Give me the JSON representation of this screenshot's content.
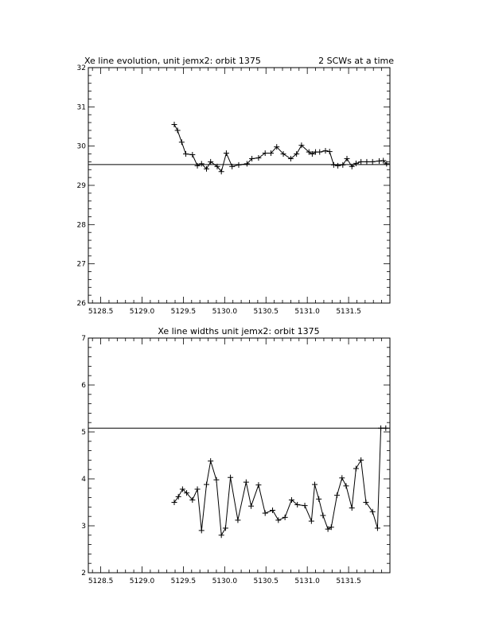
{
  "chart_data": [
    {
      "type": "line",
      "title": "Xe line evolution, unit jemx2: orbit 1375",
      "subtitle": "2 SCWs at a time",
      "xlim": [
        5128.35,
        5132.0
      ],
      "ylim": [
        26,
        32
      ],
      "xticks": [
        5128.5,
        5129.0,
        5129.5,
        5130.0,
        5130.5,
        5131.0,
        5131.5
      ],
      "xtick_labels": [
        "5128.5",
        "5129.0",
        "5129.5",
        "5130.0",
        "5130.5",
        "5131.0",
        "5131.5"
      ],
      "yticks": [
        26,
        27,
        28,
        29,
        30,
        31,
        32
      ],
      "ytick_labels": [
        "26",
        "27",
        "28",
        "29",
        "30",
        "31",
        "32"
      ],
      "reference_y": 29.53,
      "grid": false,
      "x": [
        5129.39,
        5129.43,
        5129.48,
        5129.53,
        5129.61,
        5129.67,
        5129.72,
        5129.78,
        5129.83,
        5129.91,
        5129.96,
        5130.02,
        5130.09,
        5130.17,
        5130.27,
        5130.33,
        5130.41,
        5130.49,
        5130.56,
        5130.63,
        5130.71,
        5130.8,
        5130.87,
        5130.93,
        5131.02,
        5131.06,
        5131.1,
        5131.15,
        5131.22,
        5131.27,
        5131.32,
        5131.37,
        5131.43,
        5131.48,
        5131.54,
        5131.59,
        5131.65,
        5131.72,
        5131.79,
        5131.87,
        5131.92,
        5131.96
      ],
      "y": [
        30.55,
        30.4,
        30.1,
        29.8,
        29.78,
        29.5,
        29.55,
        29.42,
        29.6,
        29.48,
        29.35,
        29.82,
        29.48,
        29.52,
        29.55,
        29.68,
        29.7,
        29.82,
        29.82,
        29.98,
        29.8,
        29.68,
        29.8,
        30.02,
        29.85,
        29.8,
        29.85,
        29.85,
        29.88,
        29.86,
        29.52,
        29.5,
        29.52,
        29.68,
        29.48,
        29.56,
        29.6,
        29.6,
        29.6,
        29.62,
        29.63,
        29.55
      ]
    },
    {
      "type": "line",
      "title": "Xe line widths unit jemx2: orbit 1375",
      "xlim": [
        5128.35,
        5132.0
      ],
      "ylim": [
        2,
        7
      ],
      "xticks": [
        5128.5,
        5129.0,
        5129.5,
        5130.0,
        5130.5,
        5131.0,
        5131.5
      ],
      "xtick_labels": [
        "5128.5",
        "5129.0",
        "5129.5",
        "5130.0",
        "5130.5",
        "5131.0",
        "5131.5"
      ],
      "yticks": [
        2,
        3,
        4,
        5,
        6,
        7
      ],
      "ytick_labels": [
        "2",
        "3",
        "4",
        "5",
        "6",
        "7"
      ],
      "reference_y": 5.08,
      "grid": false,
      "x": [
        5129.39,
        5129.44,
        5129.49,
        5129.54,
        5129.61,
        5129.67,
        5129.72,
        5129.78,
        5129.83,
        5129.9,
        5129.96,
        5130.01,
        5130.07,
        5130.16,
        5130.26,
        5130.32,
        5130.41,
        5130.49,
        5130.58,
        5130.65,
        5130.73,
        5130.81,
        5130.88,
        5130.97,
        5131.05,
        5131.09,
        5131.14,
        5131.19,
        5131.25,
        5131.29,
        5131.36,
        5131.42,
        5131.47,
        5131.54,
        5131.59,
        5131.65,
        5131.71,
        5131.79,
        5131.85,
        5131.89,
        5131.95
      ],
      "y": [
        3.5,
        3.62,
        3.78,
        3.7,
        3.55,
        3.78,
        2.9,
        3.88,
        4.38,
        3.98,
        2.8,
        2.95,
        4.03,
        3.12,
        3.93,
        3.42,
        3.87,
        3.27,
        3.33,
        3.12,
        3.18,
        3.55,
        3.45,
        3.43,
        3.1,
        3.88,
        3.57,
        3.22,
        2.93,
        2.97,
        3.65,
        4.02,
        3.85,
        3.38,
        4.22,
        4.4,
        3.5,
        3.3,
        2.95,
        5.08,
        5.08
      ]
    }
  ]
}
